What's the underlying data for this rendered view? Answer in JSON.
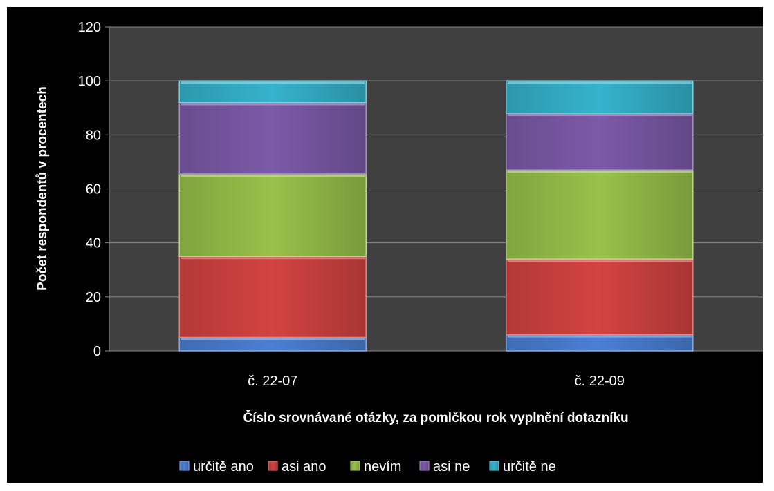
{
  "chart_data": {
    "type": "bar",
    "stacked": true,
    "categories": [
      "č. 22-07",
      "č. 22-09"
    ],
    "series": [
      {
        "name": "určitě ano",
        "values": [
          5,
          6
        ],
        "color": "#4a7fd4"
      },
      {
        "name": "asi ano",
        "values": [
          30,
          28
        ],
        "color": "#d24341"
      },
      {
        "name": "nevím",
        "values": [
          30.5,
          33
        ],
        "color": "#98c14a"
      },
      {
        "name": "asi ne",
        "values": [
          26.5,
          21
        ],
        "color": "#7b5aa8"
      },
      {
        "name": "určitě ne",
        "values": [
          8,
          12
        ],
        "color": "#35b3cc"
      }
    ],
    "title": "",
    "xlabel": "Číslo srovnávané otázky, za pomlčkou rok vyplnění dotazníku",
    "ylabel": "Počet respondentů v procentech",
    "ylim": [
      0,
      120
    ],
    "yticks": [
      "0",
      "20",
      "40",
      "60",
      "80",
      "100",
      "120"
    ],
    "grid": true,
    "legend_position": "bottom",
    "plot_background": "#404040",
    "figure_background": "#000000"
  }
}
